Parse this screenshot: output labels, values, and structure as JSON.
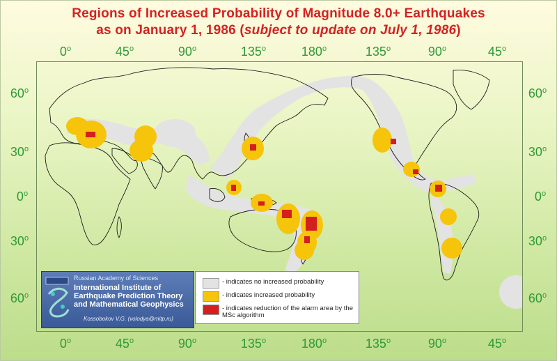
{
  "title": {
    "line1": "Regions of Increased Probability of Magnitude 8.0+ Earthquakes",
    "line2_prefix": "as on January 1, 1986 (",
    "line2_italic": "subject to update on July 1, 1986",
    "line2_suffix": ")"
  },
  "axes": {
    "longitude_labels": [
      "0",
      "45",
      "90",
      "135",
      "180",
      "135",
      "90",
      "45"
    ],
    "latitude_labels": [
      "60",
      "30",
      "0",
      "30",
      "60"
    ],
    "degree_mark": "o"
  },
  "legend": {
    "items": [
      {
        "color": "#e3e3e3",
        "text": "- indicates no increased probability"
      },
      {
        "color": "#f6c40a",
        "text": "- indicates increased probability"
      },
      {
        "color": "#d41f1f",
        "text": "- indicates reduction of the alarm area by the MSc algorithm"
      }
    ]
  },
  "institute": {
    "academy": "Russian Academy of Sciences",
    "name_lines": [
      "International Institute of",
      "Earthquake Prediction Theory",
      "and Mathematical Geophysics"
    ],
    "author": "Kossobokov V.G. (volodya@mitp.ru)"
  },
  "colors": {
    "title": "#d42222",
    "axis_labels": "#2f9a36",
    "no_increase": "#e3e3e3",
    "increase": "#f6c40a",
    "reduction": "#d41f1f"
  }
}
